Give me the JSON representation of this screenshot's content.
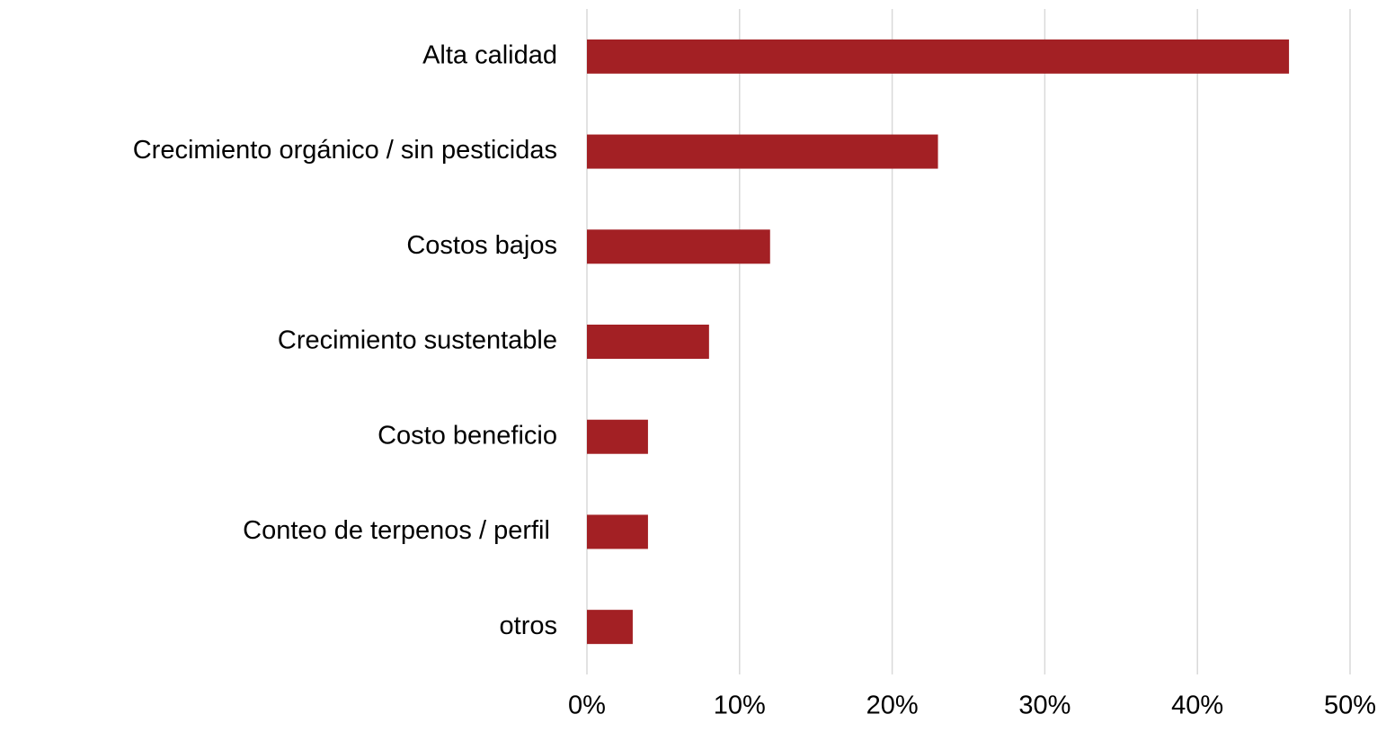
{
  "chart_data": {
    "type": "barh",
    "categories": [
      "Alta calidad",
      "Crecimiento orgánico / sin pesticidas",
      "Costos bajos",
      "Crecimiento sustentable",
      "Costo beneficio",
      "Conteo de terpenos / perfil ",
      "otros"
    ],
    "values": [
      46,
      23,
      12,
      8,
      4,
      4,
      3
    ],
    "color": "#a32024",
    "xlim": [
      0,
      50
    ],
    "xticks": [
      {
        "value": 0,
        "label": "0%"
      },
      {
        "value": 10,
        "label": "10%"
      },
      {
        "value": 20,
        "label": "20%"
      },
      {
        "value": 30,
        "label": "30%"
      },
      {
        "value": 40,
        "label": "40%"
      },
      {
        "value": 50,
        "label": "50%"
      }
    ],
    "grid": true
  }
}
